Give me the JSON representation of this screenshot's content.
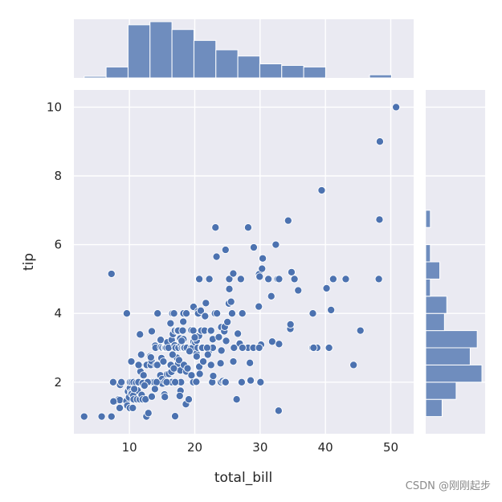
{
  "watermark": "CSDN @刚刚起步",
  "chart_data": {
    "type": "scatter",
    "title": "",
    "xlabel": "total_bill",
    "ylabel": "tip",
    "xlim": [
      1.5,
      53.5
    ],
    "ylim": [
      0.5,
      10.5
    ],
    "x_ticks": [
      10,
      20,
      30,
      40,
      50
    ],
    "y_ticks": [
      2,
      4,
      6,
      8,
      10
    ],
    "grid": true,
    "colors": {
      "background": "#eaeaf2",
      "marker": "#4c72b0",
      "grid": "#ffffff"
    },
    "points": [
      [
        3.07,
        1.0
      ],
      [
        5.75,
        1.0
      ],
      [
        7.25,
        1.0
      ],
      [
        7.25,
        5.15
      ],
      [
        7.51,
        2.0
      ],
      [
        7.74,
        1.44
      ],
      [
        8.35,
        1.5
      ],
      [
        8.51,
        1.25
      ],
      [
        8.52,
        1.48
      ],
      [
        8.58,
        1.92
      ],
      [
        8.77,
        2.0
      ],
      [
        9.55,
        1.45
      ],
      [
        9.6,
        4.0
      ],
      [
        9.68,
        1.32
      ],
      [
        9.78,
        1.73
      ],
      [
        9.94,
        1.56
      ],
      [
        10.07,
        1.25
      ],
      [
        10.07,
        1.83
      ],
      [
        10.09,
        2.0
      ],
      [
        10.27,
        1.71
      ],
      [
        10.29,
        2.6
      ],
      [
        10.33,
        1.67
      ],
      [
        10.34,
        2.0
      ],
      [
        10.34,
        1.66
      ],
      [
        10.51,
        1.25
      ],
      [
        10.59,
        1.61
      ],
      [
        10.63,
        2.0
      ],
      [
        10.65,
        1.5
      ],
      [
        11.02,
        1.98
      ],
      [
        11.17,
        1.5
      ],
      [
        11.24,
        1.76
      ],
      [
        11.35,
        2.5
      ],
      [
        11.38,
        2.0
      ],
      [
        11.59,
        1.5
      ],
      [
        11.61,
        3.39
      ],
      [
        11.69,
        2.31
      ],
      [
        11.87,
        1.63
      ],
      [
        12.03,
        1.5
      ],
      [
        12.16,
        2.2
      ],
      [
        12.26,
        2.0
      ],
      [
        12.46,
        1.5
      ],
      [
        12.48,
        2.52
      ],
      [
        12.54,
        2.5
      ],
      [
        12.6,
        1.0
      ],
      [
        12.66,
        2.5
      ],
      [
        12.69,
        2.0
      ],
      [
        12.74,
        2.01
      ],
      [
        12.9,
        1.1
      ],
      [
        13.0,
        2.0
      ],
      [
        13.03,
        2.0
      ],
      [
        13.13,
        2.0
      ],
      [
        13.16,
        2.75
      ],
      [
        13.27,
        2.5
      ],
      [
        13.37,
        2.0
      ],
      [
        13.39,
        2.61
      ],
      [
        13.42,
        3.48
      ],
      [
        13.42,
        1.58
      ],
      [
        13.51,
        2.0
      ],
      [
        13.81,
        2.0
      ],
      [
        13.94,
        3.06
      ],
      [
        14.0,
        3.0
      ],
      [
        14.07,
        2.5
      ],
      [
        14.26,
        2.5
      ],
      [
        14.31,
        4.0
      ],
      [
        14.48,
        2.0
      ],
      [
        14.52,
        2.0
      ],
      [
        14.73,
        2.2
      ],
      [
        14.78,
        3.23
      ],
      [
        14.83,
        3.02
      ],
      [
        15.01,
        2.09
      ],
      [
        15.04,
        1.96
      ],
      [
        15.06,
        3.0
      ],
      [
        15.36,
        1.64
      ],
      [
        15.38,
        3.0
      ],
      [
        15.42,
        1.57
      ],
      [
        15.48,
        2.02
      ],
      [
        15.53,
        3.0
      ],
      [
        15.69,
        3.0
      ],
      [
        15.77,
        2.23
      ],
      [
        15.81,
        3.16
      ],
      [
        15.95,
        2.0
      ],
      [
        15.98,
        3.0
      ],
      [
        16.0,
        2.0
      ],
      [
        16.04,
        2.24
      ],
      [
        16.21,
        2.0
      ],
      [
        16.27,
        2.5
      ],
      [
        16.29,
        3.71
      ],
      [
        16.31,
        2.0
      ],
      [
        16.4,
        2.5
      ],
      [
        16.43,
        2.3
      ],
      [
        16.45,
        2.47
      ],
      [
        16.47,
        3.23
      ],
      [
        16.49,
        2.0
      ],
      [
        16.58,
        4.0
      ],
      [
        16.66,
        3.4
      ],
      [
        16.82,
        4.0
      ],
      [
        16.93,
        3.07
      ],
      [
        16.97,
        3.5
      ],
      [
        16.99,
        1.01
      ],
      [
        17.07,
        3.0
      ],
      [
        17.29,
        2.71
      ],
      [
        17.31,
        3.5
      ],
      [
        17.46,
        2.54
      ],
      [
        17.47,
        3.5
      ],
      [
        17.51,
        3.0
      ],
      [
        17.59,
        2.64
      ],
      [
        17.78,
        3.27
      ],
      [
        17.81,
        2.34
      ],
      [
        17.82,
        1.75
      ],
      [
        17.89,
        2.0
      ],
      [
        17.92,
        3.08
      ],
      [
        18.04,
        3.0
      ],
      [
        18.15,
        3.5
      ],
      [
        18.24,
        3.76
      ],
      [
        18.26,
        3.25
      ],
      [
        18.28,
        4.0
      ],
      [
        18.29,
        3.0
      ],
      [
        18.35,
        2.5
      ],
      [
        18.43,
        3.0
      ],
      [
        18.64,
        1.36
      ],
      [
        18.69,
        2.31
      ],
      [
        18.71,
        4.0
      ],
      [
        18.78,
        3.0
      ],
      [
        19.08,
        1.5
      ],
      [
        19.44,
        3.0
      ],
      [
        19.49,
        3.51
      ],
      [
        19.65,
        3.0
      ],
      [
        19.77,
        2.0
      ],
      [
        19.81,
        4.19
      ],
      [
        19.82,
        3.18
      ],
      [
        20.08,
        3.15
      ],
      [
        20.23,
        2.01
      ],
      [
        20.27,
        2.83
      ],
      [
        20.29,
        2.75
      ],
      [
        20.29,
        3.21
      ],
      [
        20.45,
        3.0
      ],
      [
        20.49,
        4.06
      ],
      [
        20.53,
        4.0
      ],
      [
        20.65,
        3.35
      ],
      [
        20.69,
        2.45
      ],
      [
        20.69,
        5.0
      ],
      [
        20.76,
        2.24
      ],
      [
        20.9,
        3.5
      ],
      [
        20.92,
        4.08
      ],
      [
        21.01,
        3.5
      ],
      [
        21.01,
        3.0
      ],
      [
        21.16,
        3.0
      ],
      [
        21.5,
        3.5
      ],
      [
        21.58,
        3.92
      ],
      [
        21.7,
        4.3
      ],
      [
        22.12,
        2.88
      ],
      [
        22.23,
        5.0
      ],
      [
        22.42,
        3.48
      ],
      [
        22.49,
        3.5
      ],
      [
        22.67,
        2.0
      ],
      [
        22.75,
        3.25
      ],
      [
        22.76,
        3.0
      ],
      [
        22.82,
        2.18
      ],
      [
        23.1,
        4.0
      ],
      [
        23.17,
        6.5
      ],
      [
        23.33,
        5.65
      ],
      [
        23.68,
        3.31
      ],
      [
        23.95,
        2.55
      ],
      [
        24.01,
        2.0
      ],
      [
        24.06,
        3.6
      ],
      [
        24.08,
        2.92
      ],
      [
        24.27,
        2.03
      ],
      [
        24.52,
        3.48
      ],
      [
        24.55,
        2.0
      ],
      [
        24.59,
        3.61
      ],
      [
        24.71,
        5.85
      ],
      [
        25.0,
        3.75
      ],
      [
        25.21,
        4.29
      ],
      [
        25.28,
        5.0
      ],
      [
        25.29,
        4.71
      ],
      [
        25.56,
        4.34
      ],
      [
        25.71,
        4.0
      ],
      [
        25.89,
        5.16
      ],
      [
        26.41,
        1.5
      ],
      [
        26.59,
        3.41
      ],
      [
        26.86,
        3.14
      ],
      [
        26.88,
        3.12
      ],
      [
        27.05,
        5.0
      ],
      [
        27.18,
        2.0
      ],
      [
        27.2,
        4.0
      ],
      [
        27.28,
        4.0
      ],
      [
        28.15,
        3.0
      ],
      [
        28.17,
        6.5
      ],
      [
        28.44,
        2.56
      ],
      [
        28.55,
        2.05
      ],
      [
        28.97,
        3.0
      ],
      [
        29.03,
        5.92
      ],
      [
        29.8,
        4.2
      ],
      [
        29.85,
        5.14
      ],
      [
        29.93,
        5.07
      ],
      [
        30.06,
        2.0
      ],
      [
        30.14,
        3.09
      ],
      [
        30.4,
        5.6
      ],
      [
        31.27,
        5.0
      ],
      [
        31.71,
        4.5
      ],
      [
        31.85,
        3.18
      ],
      [
        32.4,
        6.0
      ],
      [
        32.68,
        5.0
      ],
      [
        32.83,
        1.17
      ],
      [
        32.9,
        3.11
      ],
      [
        34.3,
        6.7
      ],
      [
        34.63,
        3.55
      ],
      [
        34.65,
        3.68
      ],
      [
        34.81,
        5.2
      ],
      [
        35.26,
        5.0
      ],
      [
        35.83,
        4.67
      ],
      [
        38.01,
        3.0
      ],
      [
        38.07,
        4.0
      ],
      [
        38.73,
        3.0
      ],
      [
        39.42,
        7.58
      ],
      [
        40.17,
        4.73
      ],
      [
        40.55,
        3.0
      ],
      [
        41.19,
        5.0
      ],
      [
        43.11,
        5.0
      ],
      [
        44.3,
        2.5
      ],
      [
        45.35,
        3.5
      ],
      [
        48.17,
        5.0
      ],
      [
        48.27,
        6.73
      ],
      [
        48.33,
        9.0
      ],
      [
        50.81,
        10.0
      ],
      [
        7.56,
        1.44
      ],
      [
        12.02,
        1.97
      ],
      [
        16.32,
        2.5
      ],
      [
        19.77,
        3.5
      ],
      [
        22.49,
        2.5
      ],
      [
        24.71,
        2.0
      ],
      [
        14.15,
        2.0
      ],
      [
        11.4,
        2.5
      ],
      [
        13.28,
        2.72
      ],
      [
        27.3,
        3.0
      ],
      [
        29.85,
        3.0
      ],
      [
        32.9,
        5.0
      ],
      [
        38.18,
        3.0
      ],
      [
        40.86,
        4.1
      ],
      [
        10.74,
        1.8
      ],
      [
        21.9,
        3.0
      ],
      [
        17.0,
        2.0
      ],
      [
        15.7,
        2.0
      ],
      [
        12.8,
        2.0
      ],
      [
        16.6,
        2.8
      ],
      [
        18.9,
        2.4
      ],
      [
        23.4,
        4.0
      ],
      [
        25.9,
        2.6
      ],
      [
        30.3,
        5.3
      ],
      [
        20.0,
        3.3
      ],
      [
        14.9,
        2.7
      ],
      [
        19.2,
        2.9
      ],
      [
        13.9,
        1.8
      ],
      [
        11.8,
        2.8
      ],
      [
        17.7,
        1.6
      ],
      [
        26.0,
        3.0
      ],
      [
        21.3,
        2.6
      ],
      [
        18.0,
        3.2
      ],
      [
        16.8,
        2.4
      ],
      [
        22.0,
        2.8
      ],
      [
        15.2,
        2.6
      ],
      [
        12.3,
        1.9
      ],
      [
        24.8,
        3.2
      ],
      [
        19.5,
        2.2
      ]
    ],
    "marginal_x_hist": {
      "bin_edges": [
        3.07,
        6.43,
        9.79,
        13.15,
        16.51,
        19.87,
        23.23,
        26.59,
        29.95,
        33.31,
        36.67,
        40.03,
        43.39,
        46.75,
        50.11,
        53.47
      ],
      "counts": [
        1,
        7,
        34,
        36,
        31,
        24,
        18,
        14,
        9,
        8,
        7,
        0,
        0,
        2,
        0
      ]
    },
    "marginal_y_hist": {
      "bin_edges": [
        1.0,
        1.5,
        2.0,
        2.5,
        3.0,
        3.5,
        4.0,
        4.5,
        5.0,
        5.5,
        6.0,
        6.5,
        7.0,
        7.5,
        8.0,
        8.5,
        9.0,
        9.5,
        10.0
      ],
      "counts": [
        7,
        13,
        24,
        19,
        22,
        8,
        9,
        2,
        6,
        2,
        0,
        2,
        0,
        0,
        0,
        0,
        0,
        0
      ]
    }
  }
}
